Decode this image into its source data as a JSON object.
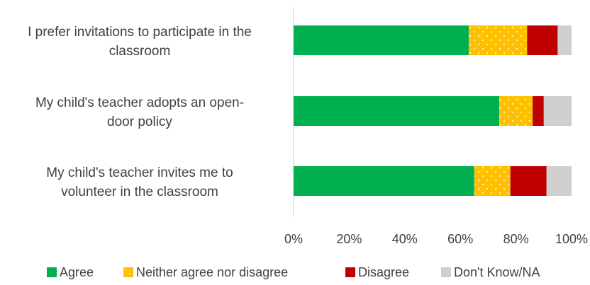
{
  "chart_data": {
    "type": "bar",
    "orientation": "horizontal",
    "stacked": "percent",
    "categories": [
      "I prefer invitations to participate in the classroom",
      "My child's teacher adopts an open-door policy",
      "My child's teacher invites me to volunteer in the classroom"
    ],
    "category_lines": [
      [
        "I prefer invitations to participate in the",
        "classroom"
      ],
      [
        "My child's teacher adopts an open-",
        "door policy"
      ],
      [
        "My child's teacher invites me to",
        "volunteer in the classroom"
      ]
    ],
    "series": [
      {
        "name": "Agree",
        "color": "#00b050",
        "pattern": "solid",
        "values": [
          63,
          74,
          65
        ]
      },
      {
        "name": "Neither agree nor disagree",
        "color": "#ffc000",
        "pattern": "dots",
        "values": [
          21,
          12,
          13
        ]
      },
      {
        "name": "Disagree",
        "color": "#c00000",
        "pattern": "solid",
        "values": [
          11,
          4,
          13
        ]
      },
      {
        "name": "Don't Know/NA",
        "color": "#d0cece",
        "pattern": "solid",
        "values": [
          5,
          10,
          9
        ]
      }
    ],
    "xlim": [
      0,
      100
    ],
    "x_ticks": [
      "0%",
      "20%",
      "40%",
      "60%",
      "80%",
      "100%"
    ],
    "grid": false,
    "legend_position": "bottom"
  }
}
